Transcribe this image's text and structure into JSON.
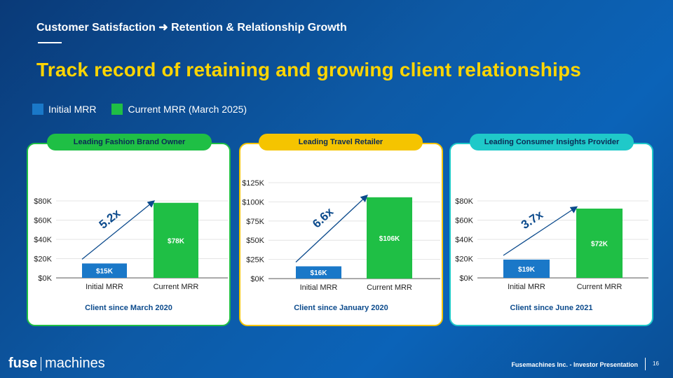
{
  "header": {
    "subtitle": "Customer Satisfaction ➜ Retention & Relationship Growth",
    "headline": "Track record of retaining and growing client relationships"
  },
  "legend": {
    "initial_label": "Initial MRR",
    "current_label": "Current MRR (March 2025)",
    "initial_color": "#1a78c8",
    "current_color": "#1fbf45"
  },
  "chart_data": [
    {
      "type": "bar",
      "title": "Leading Fashion Brand Owner",
      "categories": [
        "Initial MRR",
        "Current MRR"
      ],
      "values": [
        15,
        78
      ],
      "value_labels": [
        "$15K",
        "$78K"
      ],
      "yticks": [
        0,
        20,
        40,
        60,
        80
      ],
      "ytick_labels": [
        "$0K",
        "$20K",
        "$40K",
        "$60K",
        "$80K"
      ],
      "ylim": [
        0,
        80
      ],
      "multiplier": "5.2x",
      "footer": "Client since March 2020"
    },
    {
      "type": "bar",
      "title": "Leading Travel Retailer",
      "categories": [
        "Initial MRR",
        "Current MRR"
      ],
      "values": [
        16,
        106
      ],
      "value_labels": [
        "$16K",
        "$106K"
      ],
      "yticks": [
        0,
        25,
        50,
        75,
        100,
        125
      ],
      "ytick_labels": [
        "$0K",
        "$25K",
        "$50K",
        "$75K",
        "$100K",
        "$125K"
      ],
      "ylim": [
        0,
        125
      ],
      "multiplier": "6.6x",
      "footer": "Client since January 2020"
    },
    {
      "type": "bar",
      "title": "Leading Consumer Insights Provider",
      "categories": [
        "Initial MRR",
        "Current MRR"
      ],
      "values": [
        19,
        72
      ],
      "value_labels": [
        "$19K",
        "$72K"
      ],
      "yticks": [
        0,
        20,
        40,
        60,
        80
      ],
      "ytick_labels": [
        "$0K",
        "$20K",
        "$40K",
        "$60K",
        "$80K"
      ],
      "ylim": [
        0,
        80
      ],
      "multiplier": "3.7x",
      "footer": "Client since June 2021"
    }
  ],
  "footer": {
    "logo_bold": "fuse",
    "logo_light": "machines",
    "text": "Fusemachines Inc. - Investor Presentation",
    "page": "16"
  }
}
